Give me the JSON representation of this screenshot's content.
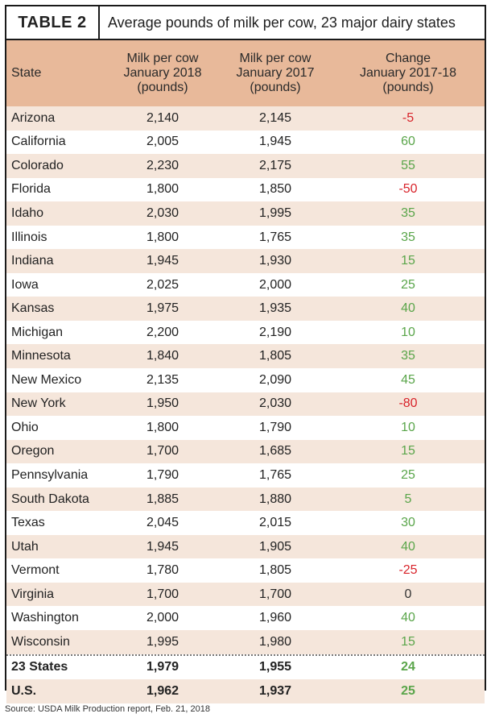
{
  "table": {
    "label": "TABLE 2",
    "title": "Average pounds of milk per cow, 23 major dairy states",
    "headers": {
      "state": "State",
      "jan2018": [
        "Milk per cow",
        "January 2018",
        "(pounds)"
      ],
      "jan2017": [
        "Milk per cow",
        "January 2017",
        "(pounds)"
      ],
      "change": [
        "Change",
        "January 2017-18",
        "(pounds)"
      ]
    },
    "rows": [
      {
        "state": "Arizona",
        "jan2018": "2,140",
        "jan2017": "2,145",
        "change": "-5",
        "sign": "neg"
      },
      {
        "state": "California",
        "jan2018": "2,005",
        "jan2017": "1,945",
        "change": "60",
        "sign": "pos"
      },
      {
        "state": "Colorado",
        "jan2018": "2,230",
        "jan2017": "2,175",
        "change": "55",
        "sign": "pos"
      },
      {
        "state": "Florida",
        "jan2018": "1,800",
        "jan2017": "1,850",
        "change": "-50",
        "sign": "neg"
      },
      {
        "state": "Idaho",
        "jan2018": "2,030",
        "jan2017": "1,995",
        "change": "35",
        "sign": "pos"
      },
      {
        "state": "Illinois",
        "jan2018": "1,800",
        "jan2017": "1,765",
        "change": "35",
        "sign": "pos"
      },
      {
        "state": "Indiana",
        "jan2018": "1,945",
        "jan2017": "1,930",
        "change": "15",
        "sign": "pos"
      },
      {
        "state": "Iowa",
        "jan2018": "2,025",
        "jan2017": "2,000",
        "change": "25",
        "sign": "pos"
      },
      {
        "state": "Kansas",
        "jan2018": "1,975",
        "jan2017": "1,935",
        "change": "40",
        "sign": "pos"
      },
      {
        "state": "Michigan",
        "jan2018": "2,200",
        "jan2017": "2,190",
        "change": "10",
        "sign": "pos"
      },
      {
        "state": "Minnesota",
        "jan2018": "1,840",
        "jan2017": "1,805",
        "change": "35",
        "sign": "pos"
      },
      {
        "state": "New Mexico",
        "jan2018": "2,135",
        "jan2017": "2,090",
        "change": "45",
        "sign": "pos"
      },
      {
        "state": "New York",
        "jan2018": "1,950",
        "jan2017": "2,030",
        "change": "-80",
        "sign": "neg"
      },
      {
        "state": "Ohio",
        "jan2018": "1,800",
        "jan2017": "1,790",
        "change": "10",
        "sign": "pos"
      },
      {
        "state": "Oregon",
        "jan2018": "1,700",
        "jan2017": "1,685",
        "change": "15",
        "sign": "pos"
      },
      {
        "state": "Pennsylvania",
        "jan2018": "1,790",
        "jan2017": "1,765",
        "change": "25",
        "sign": "pos"
      },
      {
        "state": "South Dakota",
        "jan2018": "1,885",
        "jan2017": "1,880",
        "change": "5",
        "sign": "pos"
      },
      {
        "state": "Texas",
        "jan2018": "2,045",
        "jan2017": "2,015",
        "change": "30",
        "sign": "pos"
      },
      {
        "state": "Utah",
        "jan2018": "1,945",
        "jan2017": "1,905",
        "change": "40",
        "sign": "pos"
      },
      {
        "state": "Vermont",
        "jan2018": "1,780",
        "jan2017": "1,805",
        "change": "-25",
        "sign": "neg"
      },
      {
        "state": "Virginia",
        "jan2018": "1,700",
        "jan2017": "1,700",
        "change": "0",
        "sign": "zero"
      },
      {
        "state": "Washington",
        "jan2018": "2,000",
        "jan2017": "1,960",
        "change": "40",
        "sign": "pos"
      },
      {
        "state": "Wisconsin",
        "jan2018": "1,995",
        "jan2017": "1,980",
        "change": "15",
        "sign": "pos"
      }
    ],
    "totals": [
      {
        "state": "23 States",
        "jan2018": "1,979",
        "jan2017": "1,955",
        "change": "24",
        "sign": "pos"
      },
      {
        "state": "U.S.",
        "jan2018": "1,962",
        "jan2017": "1,937",
        "change": "25",
        "sign": "pos"
      }
    ]
  },
  "source": "Source: USDA Milk Production report, Feb. 21, 2018",
  "colors": {
    "header_bg": "#e8b99a",
    "stripe_bg": "#f5e6db",
    "positive": "#5aa54a",
    "negative": "#d8232a"
  }
}
